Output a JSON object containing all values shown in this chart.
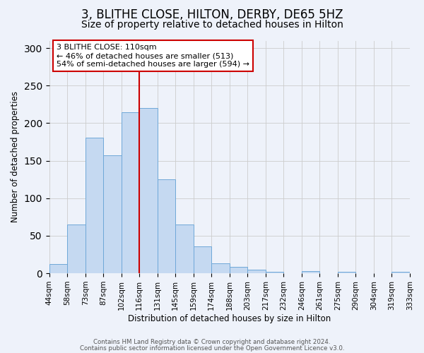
{
  "title": "3, BLITHE CLOSE, HILTON, DERBY, DE65 5HZ",
  "subtitle": "Size of property relative to detached houses in Hilton",
  "xlabel": "Distribution of detached houses by size in Hilton",
  "ylabel": "Number of detached properties",
  "bar_labels": [
    "44sqm",
    "58sqm",
    "73sqm",
    "87sqm",
    "102sqm",
    "116sqm",
    "131sqm",
    "145sqm",
    "159sqm",
    "174sqm",
    "188sqm",
    "203sqm",
    "217sqm",
    "232sqm",
    "246sqm",
    "261sqm",
    "275sqm",
    "290sqm",
    "304sqm",
    "319sqm",
    "333sqm"
  ],
  "bar_heights": [
    12,
    65,
    181,
    157,
    215,
    220,
    125,
    65,
    36,
    13,
    9,
    5,
    2,
    0,
    3,
    0,
    2,
    0,
    0,
    2
  ],
  "bar_color": "#c5d9f1",
  "bar_edge_color": "#6fa8d8",
  "vline_x": 5.0,
  "vline_color": "#cc0000",
  "annotation_title": "3 BLITHE CLOSE: 110sqm",
  "annotation_line1": "← 46% of detached houses are smaller (513)",
  "annotation_line2": "54% of semi-detached houses are larger (594) →",
  "annotation_box_color": "#ffffff",
  "annotation_box_edge": "#cc0000",
  "ylim": [
    0,
    310
  ],
  "yticks": [
    0,
    50,
    100,
    150,
    200,
    250,
    300
  ],
  "footer1": "Contains HM Land Registry data © Crown copyright and database right 2024.",
  "footer2": "Contains public sector information licensed under the Open Government Licence v3.0.",
  "bg_color": "#eef2fa",
  "title_fontsize": 12,
  "subtitle_fontsize": 10
}
